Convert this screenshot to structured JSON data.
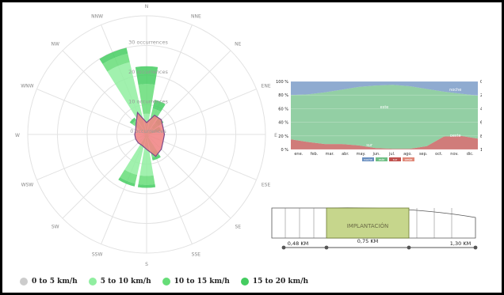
{
  "chart_data": [
    {
      "type": "polar-bar",
      "directions": [
        "N",
        "NNE",
        "NE",
        "ENE",
        "E",
        "ESE",
        "SE",
        "SSE",
        "S",
        "SSW",
        "SW",
        "WSW",
        "W",
        "WNW",
        "NW",
        "NNW"
      ],
      "radial_labels": [
        "0 occurrences",
        "10 occurrences",
        "20 occurrences",
        "30 occurrences"
      ],
      "rmax": 40,
      "series": [
        {
          "name": "0 to 5 km/h",
          "color": "#cccccc",
          "values": [
            0,
            0,
            0,
            0,
            0,
            0,
            0,
            0,
            0,
            0,
            0,
            0,
            0,
            0,
            0,
            0
          ]
        },
        {
          "name": "5 to 10 km/h",
          "color": "#90eea0",
          "values": [
            7,
            6,
            3,
            1,
            0.5,
            0.5,
            1,
            6,
            14,
            14,
            1,
            0.5,
            0.5,
            1,
            5,
            25
          ]
        },
        {
          "name": "10 to 15 km/h",
          "color": "#66dd78",
          "values": [
            10,
            3,
            2,
            2,
            0,
            0,
            0,
            2,
            3,
            3,
            0,
            0,
            0,
            0,
            1,
            3
          ]
        },
        {
          "name": "15 to 20 km/h",
          "color": "#44cc60",
          "values": [
            6,
            3,
            2,
            2,
            0,
            0,
            0,
            1,
            1,
            1,
            0,
            0,
            0,
            0,
            1,
            2
          ]
        }
      ],
      "overlay": {
        "color": "#f08080",
        "values": [
          4,
          7,
          7,
          6,
          6,
          6,
          7,
          8,
          5,
          4,
          4,
          4,
          4,
          4,
          5,
          8
        ]
      }
    },
    {
      "type": "area",
      "categories": [
        "ene.",
        "feb.",
        "mar.",
        "abr.",
        "may.",
        "jun.",
        "jul.",
        "ago.",
        "sep.",
        "oct.",
        "nov.",
        "dic."
      ],
      "left_axis_labels": [
        "100 %",
        "80 %",
        "60 %",
        "40 %",
        "20 %",
        "0 %"
      ],
      "right_axis_labels": [
        "0 %",
        "20 %",
        "40 %",
        "60 %",
        "80 %",
        "100 %"
      ],
      "series": [
        {
          "name": "noche",
          "color": "#6a8fc0",
          "values": [
            20,
            19,
            16,
            12,
            8,
            6,
            5,
            7,
            11,
            15,
            18,
            21
          ]
        },
        {
          "name": "este",
          "color": "#6fbf85",
          "values": [
            65,
            70,
            76,
            80,
            86,
            92,
            94,
            92,
            84,
            66,
            62,
            63
          ]
        },
        {
          "name": "sur",
          "color": "#c0504d",
          "values": [
            15,
            11,
            8,
            8,
            6,
            2,
            1,
            1,
            5,
            19,
            20,
            16
          ]
        }
      ],
      "labels": {
        "noche": "noche",
        "este": "este",
        "sur": "sur",
        "oeste": "oeste"
      },
      "legend_chips": [
        "noche",
        "este",
        "sur",
        "oeste"
      ]
    }
  ],
  "diagram": {
    "region_label": "IMPLANTACIÓN",
    "distances": [
      "0,48 KM",
      "0,75 KM",
      "1,30 KM"
    ]
  },
  "legend": [
    {
      "label": "0 to 5 km/h",
      "color": "#cccccc"
    },
    {
      "label": "5 to 10 km/h",
      "color": "#90eea0"
    },
    {
      "label": "10 to 15 km/h",
      "color": "#66dd78"
    },
    {
      "label": "15 to 20 km/h",
      "color": "#44cc60"
    }
  ]
}
